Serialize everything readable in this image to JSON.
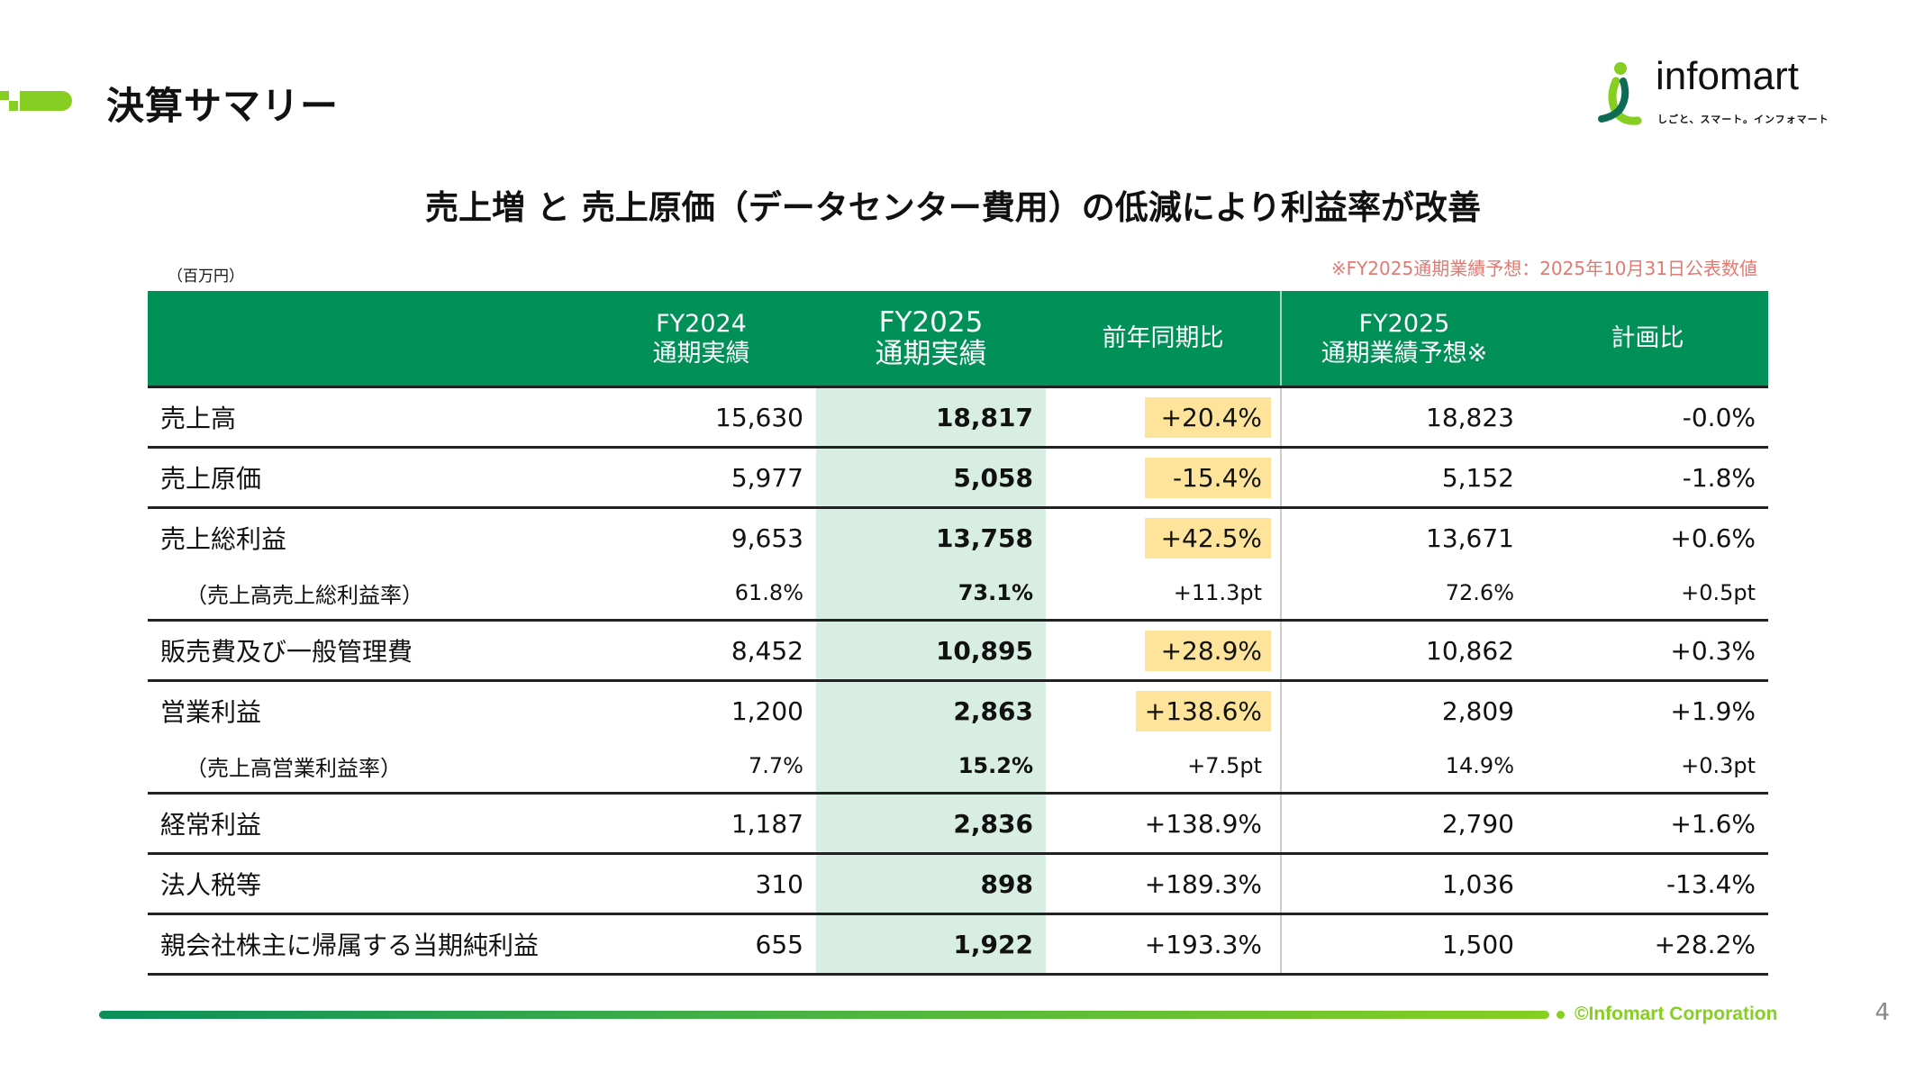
{
  "header": {
    "title": "決算サマリー",
    "logo_text": "infomart",
    "logo_tagline": "しごと、スマート。インフォマート",
    "brand_green": "#009058",
    "accent_lime": "#86cf22"
  },
  "subtitle": "売上増 と 売上原価（データセンター費用）の低減により利益率が改善",
  "unit_note": "（百万円）",
  "forecast_note": "※FY2025通期業績予想：2025年10月31日公表数値",
  "table": {
    "columns": [
      {
        "line1": "",
        "line2": ""
      },
      {
        "line1": "FY2024",
        "line2": "通期実績"
      },
      {
        "line1": "FY2025",
        "line2": "通期実績"
      },
      {
        "line1": "前年同期比",
        "line2": ""
      },
      {
        "line1": "FY2025",
        "line2": "通期業績予想※"
      },
      {
        "line1": "計画比",
        "line2": ""
      }
    ],
    "rows": [
      {
        "label": "売上高",
        "fy2024": "15,630",
        "fy2025": "18,817",
        "yoy": "+20.4%",
        "forecast": "18,823",
        "vs_plan": "-0.0%",
        "highlight": true,
        "sub": false
      },
      {
        "label": "売上原価",
        "fy2024": "5,977",
        "fy2025": "5,058",
        "yoy": "-15.4%",
        "forecast": "5,152",
        "vs_plan": "-1.8%",
        "highlight": true,
        "sub": false
      },
      {
        "label": "売上総利益",
        "fy2024": "9,653",
        "fy2025": "13,758",
        "yoy": "+42.5%",
        "forecast": "13,671",
        "vs_plan": "+0.6%",
        "highlight": true,
        "sub": false
      },
      {
        "label": "（売上高売上総利益率）",
        "fy2024": "61.8%",
        "fy2025": "73.1%",
        "yoy": "+11.3pt",
        "forecast": "72.6%",
        "vs_plan": "+0.5pt",
        "highlight": false,
        "sub": true
      },
      {
        "label": "販売費及び一般管理費",
        "fy2024": "8,452",
        "fy2025": "10,895",
        "yoy": "+28.9%",
        "forecast": "10,862",
        "vs_plan": "+0.3%",
        "highlight": true,
        "sub": false
      },
      {
        "label": "営業利益",
        "fy2024": "1,200",
        "fy2025": "2,863",
        "yoy": "+138.6%",
        "forecast": "2,809",
        "vs_plan": "+1.9%",
        "highlight": true,
        "sub": false
      },
      {
        "label": "（売上高営業利益率）",
        "fy2024": "7.7%",
        "fy2025": "15.2%",
        "yoy": "+7.5pt",
        "forecast": "14.9%",
        "vs_plan": "+0.3pt",
        "highlight": false,
        "sub": true
      },
      {
        "label": "経常利益",
        "fy2024": "1,187",
        "fy2025": "2,836",
        "yoy": "+138.9%",
        "forecast": "2,790",
        "vs_plan": "+1.6%",
        "highlight": false,
        "sub": false
      },
      {
        "label": "法人税等",
        "fy2024": "310",
        "fy2025": "898",
        "yoy": "+189.3%",
        "forecast": "1,036",
        "vs_plan": "-13.4%",
        "highlight": false,
        "sub": false
      },
      {
        "label": "親会社株主に帰属する当期純利益",
        "fy2024": "655",
        "fy2025": "1,922",
        "yoy": "+193.3%",
        "forecast": "1,500",
        "vs_plan": "+28.2%",
        "highlight": false,
        "sub": false
      }
    ],
    "highlight_color": "#fde49a",
    "fy2025_column_color": "#d8eee2"
  },
  "footer": {
    "copyright": "©Infomart Corporation",
    "page_number": "4"
  }
}
